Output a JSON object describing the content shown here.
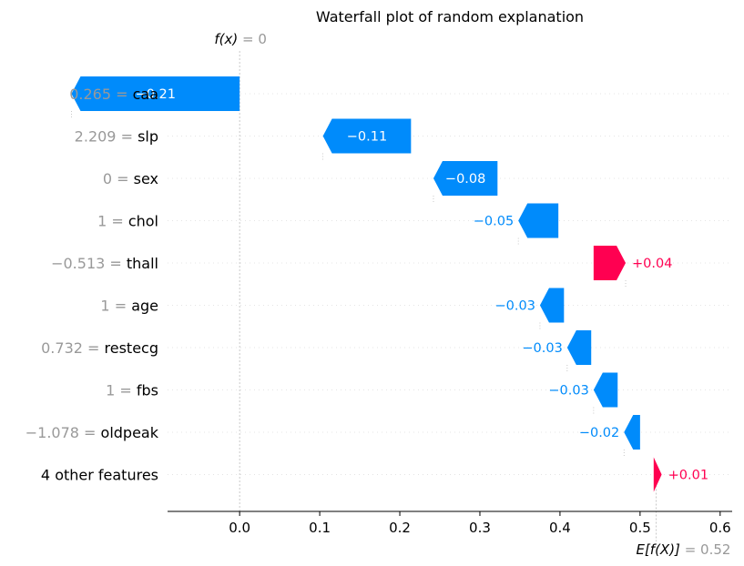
{
  "chart_data": {
    "type": "waterfall",
    "title": "Waterfall plot of random explanation",
    "start_label": {
      "prefix": "f(x)",
      "eq": " = ",
      "value": "0"
    },
    "end_label": {
      "prefix": "E[f(X)]",
      "eq": " = ",
      "value": "0.52"
    },
    "start_value": 0,
    "end_value": 0.52,
    "xlim": [
      -0.09,
      0.615
    ],
    "xticks": [
      0.0,
      0.1,
      0.2,
      0.3,
      0.4,
      0.5,
      0.6
    ],
    "tick_labels": [
      "0.0",
      "0.1",
      "0.2",
      "0.3",
      "0.4",
      "0.5",
      "0.6"
    ],
    "features": [
      {
        "value": "0.265",
        "name": "caa",
        "start": 0.0,
        "contribution": -0.21,
        "label": "−0.21"
      },
      {
        "value": "2.209",
        "name": "slp",
        "start": 0.214,
        "contribution": -0.11,
        "label": "−0.11"
      },
      {
        "value": "0",
        "name": "sex",
        "start": 0.322,
        "contribution": -0.08,
        "label": "−0.08"
      },
      {
        "value": "1",
        "name": "chol",
        "start": 0.398,
        "contribution": -0.05,
        "label": "−0.05"
      },
      {
        "value": "−0.513",
        "name": "thall",
        "start": 0.442,
        "contribution": 0.04,
        "label": "+0.04"
      },
      {
        "value": "1",
        "name": "age",
        "start": 0.405,
        "contribution": -0.03,
        "label": "−0.03"
      },
      {
        "value": "0.732",
        "name": "restecg",
        "start": 0.439,
        "contribution": -0.03,
        "label": "−0.03"
      },
      {
        "value": "1",
        "name": "fbs",
        "start": 0.472,
        "contribution": -0.03,
        "label": "−0.03"
      },
      {
        "value": "−1.078",
        "name": "oldpeak",
        "start": 0.5,
        "contribution": -0.02,
        "label": "−0.02"
      },
      {
        "value": "",
        "name": "4 other features",
        "start": 0.517,
        "contribution": 0.01,
        "label": "+0.01"
      }
    ],
    "colors": {
      "negative": "#008bfb",
      "positive": "#ff0051",
      "muted": "#999999"
    }
  }
}
